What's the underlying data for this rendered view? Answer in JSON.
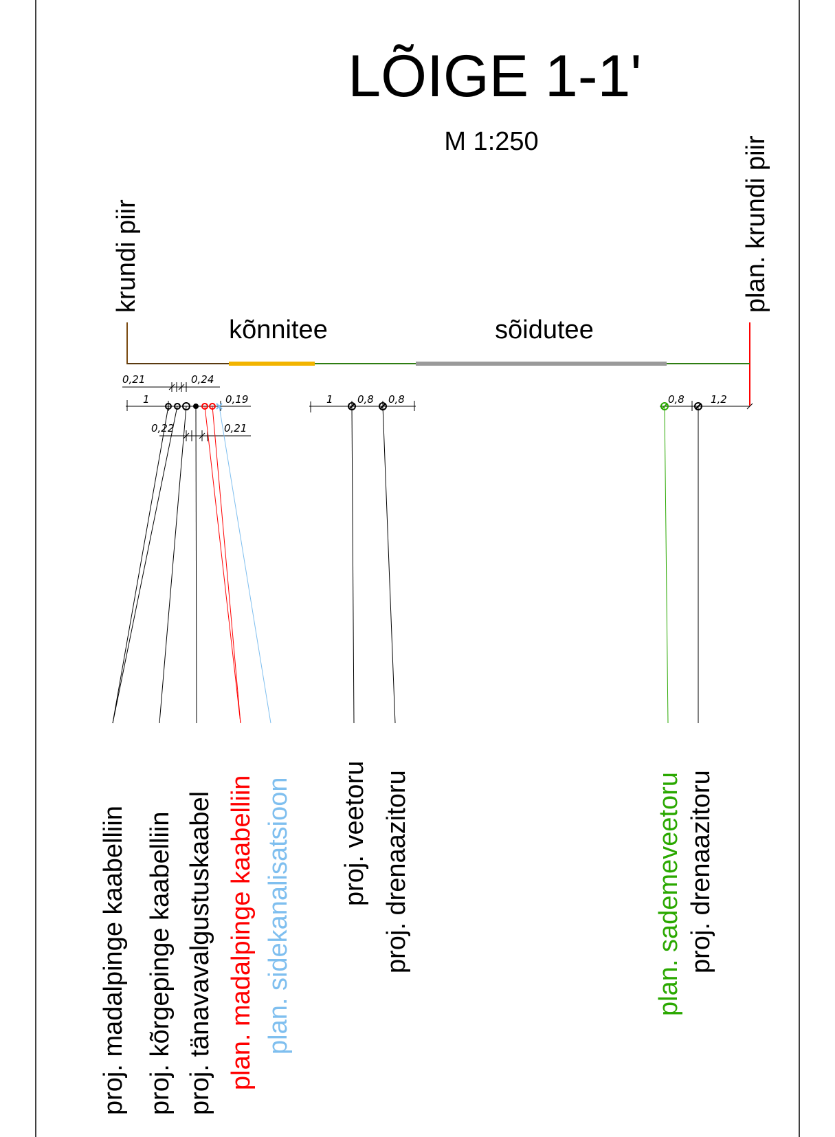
{
  "title": "LÕIGE 1-1'",
  "scale": "M 1:250",
  "boundaries": {
    "left": "krundi piir",
    "right": "plan. krundi piir"
  },
  "zones": {
    "sidewalk": "kõnnitee",
    "roadway": "sõidutee"
  },
  "dimensions": {
    "left_upper": [
      "0,21",
      "0,24"
    ],
    "left_main": [
      "1",
      "0,19"
    ],
    "left_lower": [
      "0,22",
      "0,21"
    ],
    "middle": [
      "1",
      "0,8",
      "0,8"
    ],
    "right": [
      "0,8",
      "1,2"
    ]
  },
  "utilities": [
    {
      "label": "proj. madalpinge kaabelliin",
      "color": "#000000"
    },
    {
      "label": "proj. kõrgepinge kaabelliin",
      "color": "#000000"
    },
    {
      "label": "proj. tänavavalgustuskaabel",
      "color": "#000000"
    },
    {
      "label": "plan. madalpinge kaabelliin",
      "color": "#ff0000"
    },
    {
      "label": "plan. sidekanalisatsioon",
      "color": "#7fbfef"
    },
    {
      "label": "proj. veetoru",
      "color": "#000000"
    },
    {
      "label": "proj. drenaazitoru",
      "color": "#000000"
    },
    {
      "label": "plan. sademeveetoru",
      "color": "#2aa800"
    },
    {
      "label": "proj. drenaazitoru",
      "color": "#000000"
    }
  ],
  "colors": {
    "ground": "#2e7d12",
    "sidewalk_surface": "#f2b400",
    "road_surface": "#9a9a9a",
    "left_boundary": "#7a4a10",
    "right_boundary": "#ff0000",
    "frame": "#000000"
  }
}
